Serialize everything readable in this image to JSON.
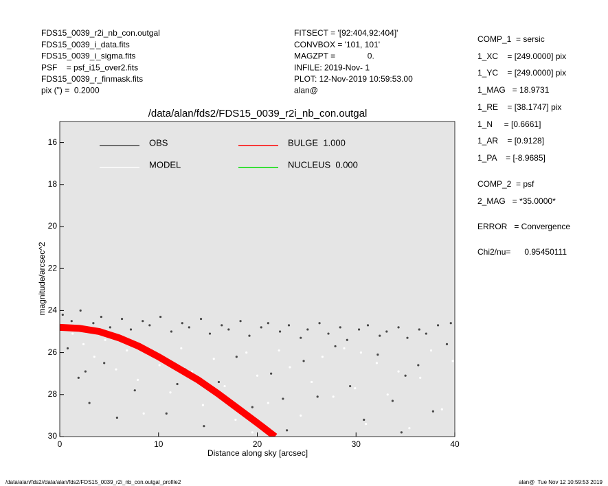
{
  "header": {
    "left": [
      "FDS15_0039_r2i_nb_con.outgal",
      "FDS15_0039_i_data.fits",
      "FDS15_0039_i_sigma.fits",
      "PSF    = psf_i15_over2.fits",
      "FDS15_0039_r_finmask.fits",
      "pix (\") =  0.2000"
    ],
    "center": [
      "FITSECT = '[92:404,92:404]'",
      "CONVBOX = '101, 101'",
      "MAGZPT =              0.",
      "INFILE: 2019-Nov- 1",
      "PLOT: 12-Nov-2019 10:59:53.00",
      "alan@"
    ],
    "right": [
      "COMP_1  = sersic",
      "1_XC    = [249.0000] pix",
      "1_YC    = [249.0000] pix",
      "1_MAG   = 18.9731",
      "1_RE    = [38.1747] pix",
      "1_N     = [0.6661]",
      "1_AR    = [0.9128]",
      "1_PA    = [-8.9685]",
      "COMP_2  = psf",
      "2_MAG   = *35.0000*",
      "ERROR   = Convergence",
      "Chi2/nu=      0.95450111"
    ]
  },
  "footer": {
    "left": "/data/alan/fds2//data/alan/fds2/FDS15_0039_r2i_nb_con.outgal_profile2",
    "right": "alan@  Tue Nov 12 10:59:53 2019"
  },
  "chart_data": {
    "type": "scatter",
    "title": "/data/alan/fds2/FDS15_0039_r2i_nb_con.outgal",
    "x_label": "Distance along sky [arcsec]",
    "y_label": "magnitude/arcsec^2",
    "xlim": [
      0,
      40
    ],
    "ylim": [
      30,
      15
    ],
    "xticks": [
      0,
      10,
      20,
      30,
      40
    ],
    "yticks": [
      16,
      18,
      20,
      22,
      24,
      26,
      28,
      30
    ],
    "background": "#e5e5e5",
    "series": [
      {
        "name": "OBS",
        "color": "#484848",
        "kind": "points",
        "x": [
          0.3,
          1.2,
          2.1,
          3.4,
          4.2,
          5.1,
          6.3,
          7.2,
          8.4,
          9.1,
          10.2,
          11.3,
          12.4,
          13.1,
          14.3,
          15.2,
          16.4,
          17.1,
          18.3,
          19.2,
          20.4,
          21.1,
          22.3,
          23.2,
          24.4,
          25.1,
          26.3,
          27.2,
          28.4,
          29.1,
          30.3,
          31.2,
          32.4,
          33.1,
          34.3,
          35.2,
          36.4,
          37.1,
          38.3,
          39.6,
          0.8,
          1.9,
          3.0,
          4.5,
          5.8,
          7.6,
          9.3,
          10.8,
          12.7,
          14.6,
          16.1,
          17.9,
          19.5,
          21.4,
          23.0,
          24.7,
          26.1,
          27.9,
          29.4,
          30.8,
          32.2,
          33.7,
          35.0,
          36.3,
          37.8,
          39.2,
          2.6,
          11.9,
          22.6,
          34.6
        ],
        "values": [
          24.2,
          24.5,
          24.0,
          24.6,
          24.3,
          24.8,
          24.4,
          24.9,
          24.5,
          24.7,
          24.3,
          25.0,
          24.6,
          24.8,
          24.4,
          25.1,
          24.7,
          24.9,
          24.5,
          25.2,
          24.8,
          24.6,
          25.0,
          24.7,
          25.3,
          24.9,
          24.6,
          25.1,
          24.8,
          25.4,
          24.9,
          24.7,
          25.2,
          25.0,
          24.8,
          25.3,
          24.9,
          25.1,
          24.7,
          24.6,
          25.8,
          27.2,
          28.4,
          26.5,
          29.1,
          27.8,
          25.9,
          28.9,
          26.8,
          29.5,
          27.4,
          26.2,
          28.6,
          27.0,
          29.7,
          26.4,
          28.1,
          25.7,
          27.6,
          29.2,
          26.1,
          28.3,
          27.1,
          26.6,
          28.8,
          25.6,
          26.9,
          27.5,
          28.2,
          29.8
        ]
      },
      {
        "name": "MODEL",
        "color": "#ffffff",
        "kind": "points",
        "x": [
          0.4,
          1.3,
          2.4,
          3.5,
          4.6,
          5.7,
          6.8,
          7.9,
          9.0,
          10.1,
          11.2,
          12.3,
          13.4,
          14.5,
          15.6,
          16.7,
          17.8,
          18.9,
          20.0,
          21.1,
          22.2,
          23.3,
          24.4,
          25.5,
          26.6,
          27.7,
          28.8,
          29.9,
          31.0,
          32.1,
          33.2,
          34.3,
          35.4,
          36.5,
          37.6,
          38.7,
          39.8,
          8.5,
          19.5,
          30.5
        ],
        "values": [
          24.7,
          25.1,
          25.6,
          26.2,
          25.4,
          26.8,
          25.9,
          27.3,
          26.1,
          26.6,
          27.9,
          25.8,
          26.9,
          28.5,
          26.3,
          27.6,
          29.2,
          26.0,
          27.1,
          28.4,
          25.9,
          26.7,
          29.0,
          27.4,
          26.2,
          28.1,
          25.8,
          27.7,
          29.4,
          26.5,
          28.0,
          26.9,
          29.6,
          27.2,
          25.9,
          28.7,
          26.4,
          28.9,
          29.8,
          26.0
        ]
      },
      {
        "name": "BULGE  1.000",
        "color": "#ff0000",
        "kind": "line",
        "x": [
          0,
          2,
          4,
          6,
          8,
          10,
          12,
          14,
          16,
          18,
          20,
          21.8
        ],
        "values": [
          24.8,
          24.85,
          25.0,
          25.3,
          25.7,
          26.2,
          26.75,
          27.3,
          27.95,
          28.65,
          29.35,
          30.0
        ]
      },
      {
        "name": "NUCLEUS  0.000",
        "color": "#00dd00",
        "kind": "line",
        "x": [],
        "values": []
      }
    ]
  }
}
